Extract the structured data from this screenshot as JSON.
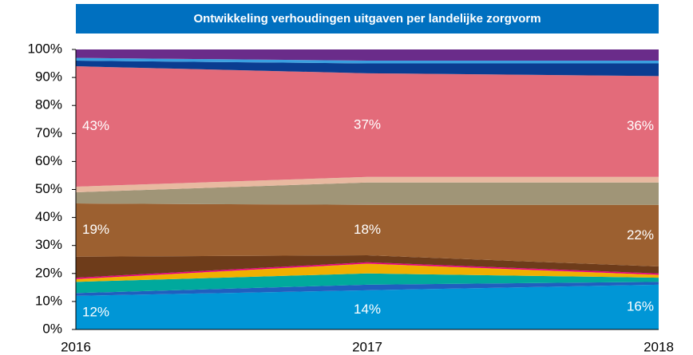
{
  "chart_data": {
    "type": "stacked_area",
    "title": "Ontwikkeling verhoudingen uitgaven per landelijke zorgvorm",
    "categories": [
      "2016",
      "2017",
      "2018"
    ],
    "series": [
      {
        "color": "#0096d6",
        "values": [
          12,
          14,
          16
        ],
        "value_labels": [
          "12%",
          "14%",
          "16%"
        ]
      },
      {
        "color": "#1f5fbf",
        "values": [
          1,
          2,
          1
        ]
      },
      {
        "color": "#00a99d",
        "values": [
          4,
          4,
          1.5
        ]
      },
      {
        "color": "#f0b000",
        "values": [
          1,
          3.5,
          1
        ]
      },
      {
        "color": "#e6007e",
        "values": [
          0.5,
          0.5,
          0.5
        ]
      },
      {
        "color": "#6e3c1a",
        "values": [
          7.5,
          2.5,
          2.5
        ]
      },
      {
        "color": "#9c6030",
        "values": [
          19,
          18,
          22
        ],
        "value_labels": [
          "19%",
          "18%",
          "22%"
        ]
      },
      {
        "color": "#a09577",
        "values": [
          4,
          8,
          8
        ]
      },
      {
        "color": "#e8b9a0",
        "values": [
          2,
          2,
          2
        ]
      },
      {
        "color": "#e36b7a",
        "values": [
          43,
          37,
          36
        ],
        "value_labels": [
          "43%",
          "37%",
          "36%"
        ]
      },
      {
        "color": "#0a3d91",
        "values": [
          2,
          3.5,
          4.5
        ]
      },
      {
        "color": "#3aa0e0",
        "values": [
          1,
          1,
          1
        ]
      },
      {
        "color": "#6a2c8a",
        "values": [
          3,
          4,
          4
        ]
      }
    ],
    "ylim": [
      0,
      100
    ],
    "yticks": [
      {
        "value": 0,
        "label": "0%"
      },
      {
        "value": 10,
        "label": "10%"
      },
      {
        "value": 20,
        "label": "20%"
      },
      {
        "value": 30,
        "label": "30%"
      },
      {
        "value": 40,
        "label": "40%"
      },
      {
        "value": 50,
        "label": "50%"
      },
      {
        "value": 60,
        "label": "60%"
      },
      {
        "value": 70,
        "label": "70%"
      },
      {
        "value": 80,
        "label": "80%"
      },
      {
        "value": 90,
        "label": "90%"
      },
      {
        "value": 100,
        "label": "100%"
      }
    ]
  }
}
